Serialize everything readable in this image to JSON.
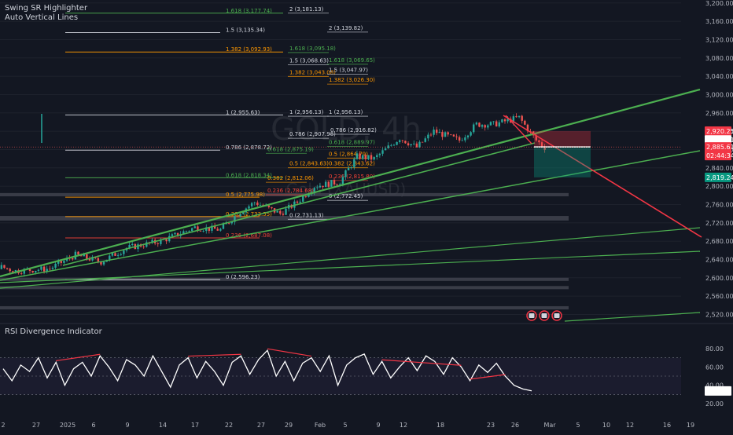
{
  "indicators": {
    "main_1": "Swing SR Highlighter",
    "main_2": "Auto Vertical Lines",
    "rsi_title": "RSI Divergence Indicator"
  },
  "watermark": {
    "symbol": "GOLD, 4h",
    "pair": "Gold (XAUUSD)"
  },
  "colors": {
    "bg": "#131722",
    "up": "#26a69a",
    "down": "#ef5350",
    "fib_white": "#d1d4dc",
    "fib_green": "#4caf50",
    "fib_orange": "#ff9800",
    "fib_red": "#f44336",
    "trend_green": "#4caf50",
    "trend_red": "#f23645",
    "zone": "#434651"
  },
  "chart_data": [
    {
      "type": "candlestick",
      "title": "GOLD, 4h",
      "ylim": [
        2500,
        3220
      ],
      "y_ticks": [
        "3,200.00",
        "3,160.00",
        "3,120.00",
        "3,080.00",
        "3,040.00",
        "3,000.00",
        "2,960.00",
        "2,920.00",
        "2,880.00",
        "2,840.00",
        "2,800.00",
        "2,760.00",
        "2,720.00",
        "2,680.00",
        "2,640.00",
        "2,600.00",
        "2,560.00",
        "2,520.00"
      ],
      "y_tick_values": [
        3200,
        3160,
        3120,
        3080,
        3040,
        3000,
        2960,
        2920,
        2880,
        2840,
        2800,
        2760,
        2720,
        2680,
        2640,
        2600,
        2560,
        2520
      ],
      "x_ticks": [
        "2",
        "27",
        "2025",
        "6",
        "9",
        "14",
        "17",
        "22",
        "27",
        "29",
        "Feb",
        "5",
        "9",
        "12",
        "18",
        "23",
        "26",
        "Mar",
        "5",
        "10",
        "12",
        "16",
        "19"
      ],
      "close_path": [
        [
          "2024-12-12",
          2640
        ],
        [
          "2024-12-16",
          2660
        ],
        [
          "2024-12-19",
          2625
        ],
        [
          "2024-12-23",
          2635
        ],
        [
          "2024-12-27",
          2615
        ],
        [
          "2024-12-31",
          2620
        ],
        [
          "2025-01-03",
          2650
        ],
        [
          "2025-01-06",
          2635
        ],
        [
          "2025-01-09",
          2665
        ],
        [
          "2025-01-13",
          2680
        ],
        [
          "2025-01-15",
          2695
        ],
        [
          "2025-01-17",
          2710
        ],
        [
          "2025-01-20",
          2705
        ],
        [
          "2025-01-22",
          2740
        ],
        [
          "2025-01-24",
          2765
        ],
        [
          "2025-01-27",
          2740
        ],
        [
          "2025-01-29",
          2765
        ],
        [
          "2025-01-31",
          2800
        ],
        [
          "2025-02-03",
          2810
        ],
        [
          "2025-02-05",
          2865
        ],
        [
          "2025-02-07",
          2860
        ],
        [
          "2025-02-10",
          2905
        ],
        [
          "2025-02-12",
          2885
        ],
        [
          "2025-02-14",
          2920
        ],
        [
          "2025-02-17",
          2900
        ],
        [
          "2025-02-19",
          2935
        ],
        [
          "2025-02-21",
          2935
        ],
        [
          "2025-02-24",
          2950
        ],
        [
          "2025-02-25",
          2925
        ],
        [
          "2025-02-26",
          2900
        ],
        [
          "2025-02-27",
          2885
        ]
      ],
      "price_labels": {
        "red_top": "2,920.25",
        "white": "2,889.41",
        "red": "2,885.61",
        "countdown": "02:44:34",
        "green": "2,819.24"
      },
      "fib_levels": [
        {
          "label": "1.618 (3,177.74)",
          "value": 3177.74,
          "color": "green"
        },
        {
          "label": "2 (3,181.13)",
          "value": 3181.13,
          "color": "white"
        },
        {
          "label": "1.5 (3,135.34)",
          "value": 3135.34,
          "color": "white"
        },
        {
          "label": "2 (3,139.82)",
          "value": 3139.82,
          "color": "white"
        },
        {
          "label": "1.382 (3,092.93)",
          "value": 3092.93,
          "color": "orange"
        },
        {
          "label": "1.618 (3,095.18)",
          "value": 3095.18,
          "color": "green"
        },
        {
          "label": "1.5 (3,068.63)",
          "value": 3068.63,
          "color": "white"
        },
        {
          "label": "1.618 (3,069.65)",
          "value": 3069.65,
          "color": "green"
        },
        {
          "label": "1.382 (3,043.08)",
          "value": 3043.08,
          "color": "orange"
        },
        {
          "label": "1.5 (3,047.97)",
          "value": 3047.97,
          "color": "white"
        },
        {
          "label": "1.382 (3,026.30)",
          "value": 3026.3,
          "color": "orange"
        },
        {
          "label": "1 (2,955.63)",
          "value": 2955.63,
          "color": "white"
        },
        {
          "label": "1 (2,956.13)",
          "value": 2956.13,
          "color": "white"
        },
        {
          "label": "1 (2,956.13)",
          "value": 2956.13,
          "color": "white"
        },
        {
          "label": "0.786 (2,916.82)",
          "value": 2916.82,
          "color": "white"
        },
        {
          "label": "0.786 (2,907.98)",
          "value": 2907.98,
          "color": "white"
        },
        {
          "label": "0.786 (2,878.72)",
          "value": 2878.72,
          "color": "white"
        },
        {
          "label": "0.618 (2,889.97)",
          "value": 2889.97,
          "color": "green"
        },
        {
          "label": "0.618 (2,875.19)",
          "value": 2875.19,
          "color": "green"
        },
        {
          "label": "0.5 (2,864.79)",
          "value": 2864.79,
          "color": "orange"
        },
        {
          "label": "0.5 (2,843.63)",
          "value": 2843.63,
          "color": "orange"
        },
        {
          "label": "0.382 (2,843.62)",
          "value": 2843.62,
          "color": "orange"
        },
        {
          "label": "0.618 (2,818.34)",
          "value": 2818.34,
          "color": "green"
        },
        {
          "label": "0.382 (2,812.06)",
          "value": 2812.06,
          "color": "orange"
        },
        {
          "label": "0.236 (2,815.80)",
          "value": 2815.8,
          "color": "red"
        },
        {
          "label": "0.5 (2,775.98)",
          "value": 2775.98,
          "color": "orange"
        },
        {
          "label": "0.236 (2,784.68)",
          "value": 2784.68,
          "color": "red"
        },
        {
          "label": "0 (2,772.45)",
          "value": 2772.45,
          "color": "white"
        },
        {
          "label": "0.382 (2,733.55)",
          "value": 2733.55,
          "color": "orange"
        },
        {
          "label": "0 (2,731.13)",
          "value": 2731.13,
          "color": "white"
        },
        {
          "label": "0.236 (2,687.08)",
          "value": 2687.08,
          "color": "red"
        },
        {
          "label": "0 (2,596.23)",
          "value": 2596.23,
          "color": "white"
        }
      ],
      "sr_zones": [
        [
          2785,
          2778
        ],
        [
          2735,
          2725
        ],
        [
          2600,
          2594
        ],
        [
          2582,
          2576
        ],
        [
          2538,
          2531
        ]
      ]
    },
    {
      "type": "line",
      "title": "RSI Divergence Indicator",
      "ylim": [
        15,
        90
      ],
      "y_ticks": [
        "80.00",
        "60.00",
        "40.00",
        "20.00"
      ],
      "y_tick_values": [
        80,
        60,
        40,
        20
      ],
      "current_value": "33.84",
      "bands": {
        "upper": 70,
        "mid": 50,
        "lower": 30
      },
      "series": [
        {
          "values": [
            58,
            45,
            62,
            55,
            70,
            48,
            65,
            40,
            58,
            65,
            50,
            72,
            60,
            45,
            68,
            62,
            50,
            72,
            55,
            38,
            62,
            70,
            48,
            66,
            55,
            40,
            65,
            72,
            52,
            68,
            78,
            50,
            66,
            45,
            64,
            70,
            55,
            72,
            40,
            62,
            70,
            74,
            52,
            66,
            48,
            60,
            70,
            56,
            72,
            66,
            52,
            70,
            60,
            45,
            62,
            54,
            64,
            50,
            40,
            36,
            34
          ]
        }
      ]
    }
  ]
}
